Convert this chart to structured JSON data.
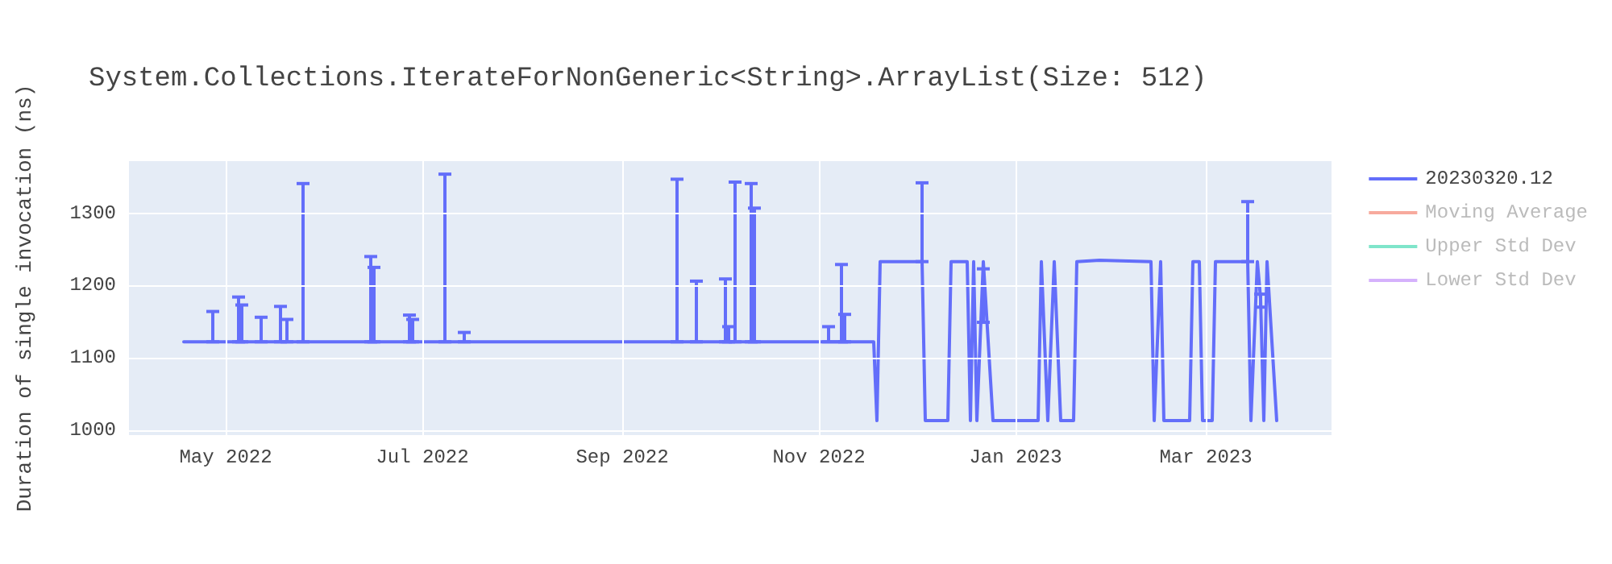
{
  "chart_data": {
    "type": "line",
    "title": "System.Collections.IterateForNonGeneric<String>.ArrayList(Size: 512)",
    "ylabel": "Duration of single invocation (ns)",
    "xlim": [
      "2022-04-01",
      "2023-04-09"
    ],
    "xticks": [
      {
        "value": "2022-05-01",
        "label": "May 2022"
      },
      {
        "value": "2022-07-01",
        "label": "Jul 2022"
      },
      {
        "value": "2022-09-01",
        "label": "Sep 2022"
      },
      {
        "value": "2022-11-01",
        "label": "Nov 2022"
      },
      {
        "value": "2023-01-01",
        "label": "Jan 2023"
      },
      {
        "value": "2023-03-01",
        "label": "Mar 2023"
      }
    ],
    "ylim": [
      993,
      1372
    ],
    "yticks": [
      1000,
      1100,
      1200,
      1300
    ],
    "grid": true,
    "legend": "top right",
    "marker": "none",
    "line_style": "solid",
    "x": [
      "2022-04-18",
      "2022-04-27",
      "2022-05-05",
      "2022-05-06",
      "2022-05-12",
      "2022-05-18",
      "2022-05-20",
      "2022-05-25",
      "2022-06-01",
      "2022-06-15",
      "2022-06-16",
      "2022-06-27",
      "2022-06-28",
      "2022-07-08",
      "2022-07-14",
      "2022-08-07",
      "2022-09-07",
      "2022-09-18",
      "2022-09-24",
      "2022-10-03",
      "2022-10-04",
      "2022-10-06",
      "2022-10-11",
      "2022-10-12",
      "2022-11-04",
      "2022-11-08",
      "2022-11-09",
      "2022-11-18",
      "2022-11-19",
      "2022-11-20",
      "2022-12-02",
      "2022-12-03",
      "2022-12-04",
      "2022-12-11",
      "2022-12-12",
      "2022-12-17",
      "2022-12-18",
      "2022-12-19",
      "2022-12-20",
      "2022-12-22",
      "2022-12-25",
      "2023-01-08",
      "2023-01-09",
      "2023-01-11",
      "2023-01-13",
      "2023-01-15",
      "2023-01-19",
      "2023-01-20",
      "2023-01-27",
      "2023-02-12",
      "2023-02-13",
      "2023-02-15",
      "2023-02-16",
      "2023-02-24",
      "2023-02-25",
      "2023-02-27",
      "2023-02-28",
      "2023-03-03",
      "2023-03-04",
      "2023-03-14",
      "2023-03-15",
      "2023-03-17",
      "2023-03-18",
      "2023-03-19",
      "2023-03-20",
      "2023-03-23"
    ],
    "series": [
      {
        "name": "20230320.12",
        "color": "#636efa",
        "values": [
          1122,
          1122,
          1122,
          1122,
          1122,
          1122,
          1122,
          1122,
          1122,
          1122,
          1122,
          1122,
          1122,
          1122,
          1122,
          1122,
          1122,
          1122,
          1122,
          1122,
          1122,
          1122,
          1122,
          1122,
          1122,
          1122,
          1122,
          1122,
          1013,
          1233,
          1233,
          1233,
          1013,
          1013,
          1233,
          1233,
          1013,
          1233,
          1013,
          1233,
          1013,
          1013,
          1233,
          1013,
          1233,
          1013,
          1013,
          1233,
          1235,
          1233,
          1013,
          1233,
          1013,
          1013,
          1233,
          1233,
          1013,
          1013,
          1233,
          1233,
          1013,
          1233,
          1182,
          1013,
          1233,
          1013
        ],
        "errors": [
          null,
          [
            1122,
            1164
          ],
          [
            1122,
            1184
          ],
          [
            1122,
            1173
          ],
          [
            1122,
            1156
          ],
          [
            1122,
            1171
          ],
          [
            1122,
            1153
          ],
          [
            1122,
            1341
          ],
          null,
          [
            1122,
            1240
          ],
          [
            1122,
            1225
          ],
          [
            1122,
            1159
          ],
          [
            1122,
            1153
          ],
          [
            1122,
            1354
          ],
          [
            1122,
            1135
          ],
          null,
          null,
          [
            1122,
            1347
          ],
          [
            1122,
            1206
          ],
          [
            1122,
            1209
          ],
          [
            1122,
            1143
          ],
          [
            1122,
            1343
          ],
          [
            1122,
            1341
          ],
          [
            1122,
            1307
          ],
          [
            1122,
            1143
          ],
          [
            1122,
            1229
          ],
          [
            1122,
            1160
          ],
          null,
          null,
          null,
          null,
          [
            1233,
            1342
          ],
          null,
          null,
          null,
          null,
          null,
          null,
          null,
          [
            1149,
            1223
          ],
          null,
          null,
          null,
          null,
          null,
          null,
          null,
          null,
          null,
          null,
          null,
          null,
          null,
          null,
          null,
          null,
          null,
          null,
          null,
          [
            1233,
            1316
          ],
          null,
          null,
          [
            1170,
            1188
          ],
          null,
          null,
          null
        ]
      },
      {
        "name": "Moving Average",
        "color": "#ef553b",
        "values": [
          null,
          null,
          null,
          null,
          null,
          null,
          null,
          null,
          null,
          null,
          null,
          null,
          null,
          null,
          null,
          null,
          null,
          null,
          null,
          null,
          null,
          null,
          null,
          null,
          null,
          null,
          null,
          null,
          null,
          null,
          null,
          null,
          null,
          null,
          null,
          null,
          null,
          null,
          null,
          null,
          null,
          null,
          null,
          null,
          null,
          null,
          null,
          null,
          null,
          null,
          null,
          null,
          null,
          null,
          null,
          null,
          null,
          null,
          null,
          null,
          null,
          null,
          null,
          null,
          null,
          null
        ]
      },
      {
        "name": "Upper Std Dev",
        "color": "#00cc96",
        "values": [
          null,
          null,
          null,
          null,
          null,
          null,
          null,
          null,
          null,
          null,
          null,
          null,
          null,
          null,
          null,
          null,
          null,
          null,
          null,
          null,
          null,
          null,
          null,
          null,
          null,
          null,
          null,
          null,
          null,
          null,
          null,
          null,
          null,
          null,
          null,
          null,
          null,
          null,
          null,
          null,
          null,
          null,
          null,
          null,
          null,
          null,
          null,
          null,
          null,
          null,
          null,
          null,
          null,
          null,
          null,
          null,
          null,
          null,
          null,
          null,
          null,
          null,
          null,
          null,
          null,
          null
        ]
      },
      {
        "name": "Lower Std Dev",
        "color": "#ab63fa",
        "values": [
          null,
          null,
          null,
          null,
          null,
          null,
          null,
          null,
          null,
          null,
          null,
          null,
          null,
          null,
          null,
          null,
          null,
          null,
          null,
          null,
          null,
          null,
          null,
          null,
          null,
          null,
          null,
          null,
          null,
          null,
          null,
          null,
          null,
          null,
          null,
          null,
          null,
          null,
          null,
          null,
          null,
          null,
          null,
          null,
          null,
          null,
          null,
          null,
          null,
          null,
          null,
          null,
          null,
          null,
          null,
          null,
          null,
          null,
          null,
          null,
          null,
          null,
          null,
          null,
          null,
          null
        ]
      }
    ]
  }
}
